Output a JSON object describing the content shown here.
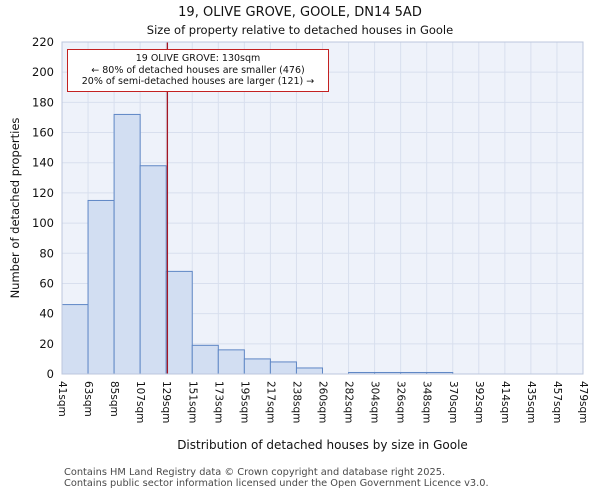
{
  "title": "19, OLIVE GROVE, GOOLE, DN14 5AD",
  "subtitle": "Size of property relative to detached houses in Goole",
  "annotation": {
    "line1": "19 OLIVE GROVE: 130sqm",
    "line2": "← 80% of detached houses are smaller (476)",
    "line3": "20% of semi-detached houses are larger (121) →"
  },
  "footer": {
    "line1": "Contains HM Land Registry data © Crown copyright and database right 2025.",
    "line2": "Contains public sector information licensed under the Open Government Licence v3.0."
  },
  "chart_data": {
    "type": "bar",
    "title": "19, OLIVE GROVE, GOOLE, DN14 5AD — Size of property relative to detached houses in Goole",
    "xlabel": "Distribution of detached houses by size in Goole",
    "ylabel": "Number of detached properties",
    "tick_labels": [
      "41sqm",
      "63sqm",
      "85sqm",
      "107sqm",
      "129sqm",
      "151sqm",
      "173sqm",
      "195sqm",
      "217sqm",
      "238sqm",
      "260sqm",
      "282sqm",
      "304sqm",
      "326sqm",
      "348sqm",
      "370sqm",
      "392sqm",
      "414sqm",
      "435sqm",
      "457sqm",
      "479sqm"
    ],
    "values": [
      46,
      115,
      172,
      138,
      68,
      19,
      16,
      10,
      8,
      4,
      0,
      1,
      1,
      1,
      1,
      0,
      0,
      0,
      0,
      0
    ],
    "ylim": [
      0,
      220
    ],
    "ytick_step": 20,
    "grid": true,
    "legend": "none",
    "marker": {
      "label": "19 OLIVE GROVE",
      "value_sqm": 130,
      "color": "#a41623"
    },
    "colors": {
      "bar_fill": "#d2def2",
      "bar_stroke": "#5f87c5",
      "grid": "#d8dfee",
      "plot_bg": "#eef2fa",
      "plot_border": "#bcc7dd",
      "marker_line": "#a41623",
      "annotation_border": "#c32121"
    }
  }
}
